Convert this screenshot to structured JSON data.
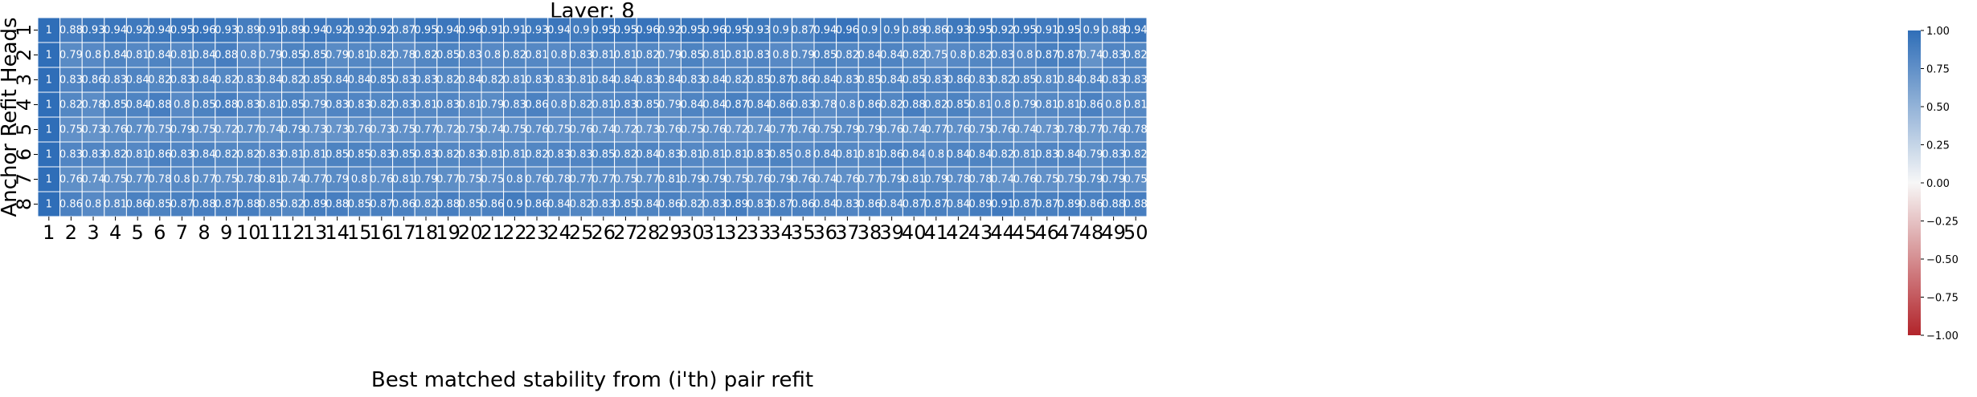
{
  "chart_data": {
    "type": "heatmap",
    "title": "Layer: 8",
    "xlabel": "Best matched stability from (i'th) pair refit",
    "ylabel": "Anchor Refit Heads",
    "x_categories": [
      "1",
      "2",
      "3",
      "4",
      "5",
      "6",
      "7",
      "8",
      "9",
      "10",
      "11",
      "12",
      "13",
      "14",
      "15",
      "16",
      "17",
      "18",
      "19",
      "20",
      "21",
      "22",
      "23",
      "24",
      "25",
      "26",
      "27",
      "28",
      "29",
      "30",
      "31",
      "32",
      "33",
      "34",
      "35",
      "36",
      "37",
      "38",
      "39",
      "40",
      "41",
      "42",
      "43",
      "44",
      "45",
      "46",
      "47",
      "48",
      "49",
      "50"
    ],
    "y_categories": [
      "1",
      "2",
      "3",
      "4",
      "5",
      "6",
      "7",
      "8"
    ],
    "values": [
      [
        1,
        0.88,
        0.93,
        0.94,
        0.92,
        0.94,
        0.95,
        0.96,
        0.93,
        0.89,
        0.91,
        0.89,
        0.94,
        0.92,
        0.92,
        0.92,
        0.87,
        0.95,
        0.94,
        0.96,
        0.91,
        0.91,
        0.93,
        0.94,
        0.9,
        0.95,
        0.95,
        0.96,
        0.92,
        0.95,
        0.96,
        0.95,
        0.93,
        0.9,
        0.87,
        0.94,
        0.96,
        0.9,
        0.9,
        0.89,
        0.86,
        0.93,
        0.95,
        0.92,
        0.95,
        0.91,
        0.95,
        0.9,
        0.88,
        0.94
      ],
      [
        1,
        0.79,
        0.8,
        0.84,
        0.81,
        0.84,
        0.81,
        0.84,
        0.88,
        0.8,
        0.79,
        0.85,
        0.85,
        0.79,
        0.81,
        0.82,
        0.78,
        0.82,
        0.85,
        0.83,
        0.8,
        0.82,
        0.81,
        0.8,
        0.83,
        0.81,
        0.81,
        0.82,
        0.79,
        0.85,
        0.81,
        0.81,
        0.83,
        0.8,
        0.79,
        0.85,
        0.82,
        0.84,
        0.84,
        0.82,
        0.75,
        0.8,
        0.82,
        0.83,
        0.8,
        0.87,
        0.87,
        0.74,
        0.83,
        0.82
      ],
      [
        1,
        0.83,
        0.86,
        0.83,
        0.84,
        0.82,
        0.83,
        0.84,
        0.82,
        0.83,
        0.84,
        0.82,
        0.85,
        0.84,
        0.84,
        0.85,
        0.83,
        0.83,
        0.82,
        0.84,
        0.82,
        0.81,
        0.83,
        0.83,
        0.81,
        0.84,
        0.84,
        0.83,
        0.84,
        0.83,
        0.84,
        0.82,
        0.85,
        0.87,
        0.86,
        0.84,
        0.83,
        0.85,
        0.84,
        0.85,
        0.83,
        0.86,
        0.83,
        0.82,
        0.85,
        0.81,
        0.84,
        0.84,
        0.83,
        0.83
      ],
      [
        1,
        0.82,
        0.78,
        0.85,
        0.84,
        0.88,
        0.8,
        0.85,
        0.88,
        0.83,
        0.81,
        0.85,
        0.79,
        0.83,
        0.83,
        0.82,
        0.83,
        0.81,
        0.83,
        0.81,
        0.79,
        0.83,
        0.86,
        0.8,
        0.82,
        0.81,
        0.83,
        0.85,
        0.79,
        0.84,
        0.84,
        0.87,
        0.84,
        0.86,
        0.83,
        0.78,
        0.8,
        0.86,
        0.82,
        0.88,
        0.82,
        0.85,
        0.81,
        0.8,
        0.79,
        0.81,
        0.81,
        0.86,
        0.8,
        0.81
      ],
      [
        1,
        0.75,
        0.73,
        0.76,
        0.77,
        0.75,
        0.79,
        0.75,
        0.72,
        0.77,
        0.74,
        0.79,
        0.73,
        0.73,
        0.76,
        0.73,
        0.75,
        0.77,
        0.72,
        0.75,
        0.74,
        0.75,
        0.76,
        0.75,
        0.76,
        0.74,
        0.72,
        0.73,
        0.76,
        0.75,
        0.76,
        0.72,
        0.74,
        0.77,
        0.76,
        0.75,
        0.79,
        0.79,
        0.76,
        0.74,
        0.77,
        0.76,
        0.75,
        0.76,
        0.74,
        0.73,
        0.78,
        0.77,
        0.76,
        0.78
      ],
      [
        1,
        0.83,
        0.83,
        0.82,
        0.81,
        0.86,
        0.83,
        0.84,
        0.82,
        0.82,
        0.83,
        0.81,
        0.81,
        0.85,
        0.85,
        0.83,
        0.85,
        0.83,
        0.82,
        0.83,
        0.81,
        0.81,
        0.82,
        0.83,
        0.83,
        0.85,
        0.82,
        0.84,
        0.83,
        0.81,
        0.81,
        0.81,
        0.83,
        0.85,
        0.8,
        0.84,
        0.81,
        0.81,
        0.86,
        0.84,
        0.8,
        0.84,
        0.84,
        0.82,
        0.81,
        0.83,
        0.84,
        0.79,
        0.83,
        0.82
      ],
      [
        1,
        0.76,
        0.74,
        0.75,
        0.77,
        0.78,
        0.8,
        0.77,
        0.75,
        0.78,
        0.81,
        0.74,
        0.77,
        0.79,
        0.8,
        0.76,
        0.81,
        0.79,
        0.77,
        0.75,
        0.75,
        0.8,
        0.76,
        0.78,
        0.77,
        0.77,
        0.75,
        0.77,
        0.81,
        0.79,
        0.79,
        0.75,
        0.76,
        0.79,
        0.76,
        0.74,
        0.76,
        0.77,
        0.79,
        0.81,
        0.79,
        0.78,
        0.78,
        0.74,
        0.76,
        0.75,
        0.75,
        0.79,
        0.79,
        0.75
      ],
      [
        1,
        0.86,
        0.8,
        0.81,
        0.86,
        0.85,
        0.87,
        0.88,
        0.87,
        0.88,
        0.85,
        0.82,
        0.89,
        0.88,
        0.85,
        0.87,
        0.86,
        0.82,
        0.88,
        0.85,
        0.86,
        0.9,
        0.86,
        0.84,
        0.82,
        0.83,
        0.85,
        0.84,
        0.86,
        0.82,
        0.83,
        0.89,
        0.83,
        0.87,
        0.86,
        0.84,
        0.83,
        0.86,
        0.84,
        0.87,
        0.87,
        0.84,
        0.89,
        0.91,
        0.87,
        0.87,
        0.89,
        0.86,
        0.88,
        0.88
      ]
    ],
    "colorbar": {
      "range": [
        -1.0,
        1.0
      ],
      "ticks": [
        "1.00",
        "0.75",
        "0.50",
        "0.25",
        "0.00",
        "−0.25",
        "−0.50",
        "−0.75",
        "−1.00"
      ],
      "tick_values": [
        1.0,
        0.75,
        0.5,
        0.25,
        0.0,
        -0.25,
        -0.5,
        -0.75,
        -1.0
      ],
      "colormap": "diverging red-white-blue",
      "color_low": "#b2242a",
      "color_mid": "#f7f7f7",
      "color_high": "#2f6eb8"
    },
    "annotations": "cell values printed in each cell",
    "cell_border_color": "#ffffff"
  }
}
